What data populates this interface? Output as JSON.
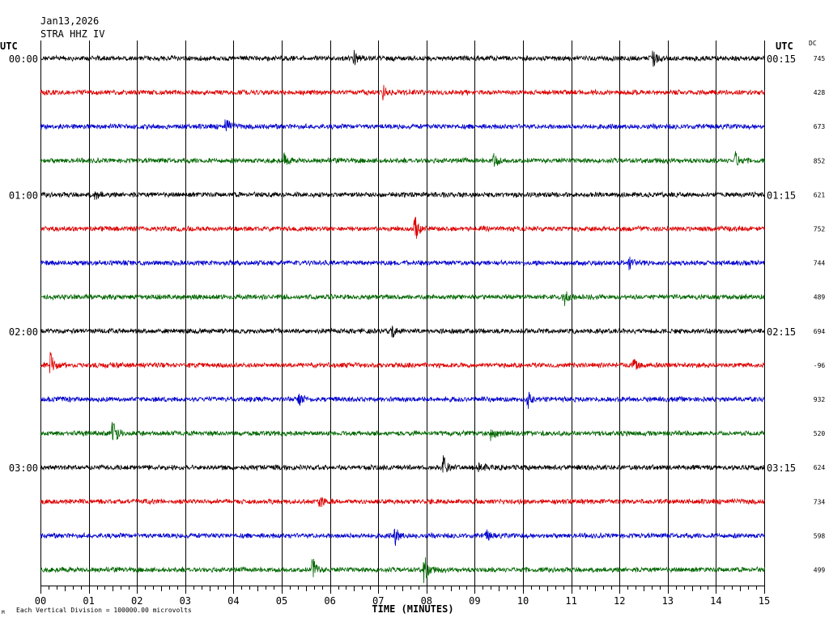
{
  "header": {
    "date": "Jan13,2026",
    "station": "STRA HHZ IV"
  },
  "left_utc_label": "UTC",
  "right_utc_label": "UTC",
  "dc_label": "DC",
  "footer": {
    "mark": "M",
    "note": "Each Vertical Division = 100000.00 microvolts"
  },
  "colors": {
    "black": "#000000",
    "red": "#dd0000",
    "blue": "#0000cc",
    "green": "#006600",
    "grid": "#000000"
  },
  "chart_data": {
    "type": "line",
    "title": "",
    "xlabel": "TIME (MINUTES)",
    "ylabel": "",
    "xlim": [
      0,
      15
    ],
    "x_ticks": [
      "00",
      "01",
      "02",
      "03",
      "04",
      "05",
      "06",
      "07",
      "08",
      "09",
      "10",
      "11",
      "12",
      "13",
      "14",
      "15"
    ],
    "trace_color_cycle": [
      "black",
      "red",
      "blue",
      "green"
    ],
    "rows": [
      {
        "left_time": "00:00",
        "right_time": "00:15",
        "dc": "745",
        "color": "black"
      },
      {
        "left_time": "",
        "right_time": "",
        "dc": "428",
        "color": "red"
      },
      {
        "left_time": "",
        "right_time": "",
        "dc": "673",
        "color": "blue"
      },
      {
        "left_time": "",
        "right_time": "",
        "dc": "852",
        "color": "green"
      },
      {
        "left_time": "01:00",
        "right_time": "01:15",
        "dc": "621",
        "color": "black"
      },
      {
        "left_time": "",
        "right_time": "",
        "dc": "752",
        "color": "red"
      },
      {
        "left_time": "",
        "right_time": "",
        "dc": "744",
        "color": "blue"
      },
      {
        "left_time": "",
        "right_time": "",
        "dc": "489",
        "color": "green"
      },
      {
        "left_time": "02:00",
        "right_time": "02:15",
        "dc": "694",
        "color": "black"
      },
      {
        "left_time": "",
        "right_time": "",
        "dc": "-96",
        "color": "red"
      },
      {
        "left_time": "",
        "right_time": "",
        "dc": "932",
        "color": "blue"
      },
      {
        "left_time": "",
        "right_time": "",
        "dc": "520",
        "color": "green"
      },
      {
        "left_time": "03:00",
        "right_time": "03:15",
        "dc": "624",
        "color": "black"
      },
      {
        "left_time": "",
        "right_time": "",
        "dc": "734",
        "color": "red"
      },
      {
        "left_time": "",
        "right_time": "",
        "dc": "598",
        "color": "blue"
      },
      {
        "left_time": "",
        "right_time": "",
        "dc": "499",
        "color": "green"
      }
    ],
    "events": [
      {
        "row": 0,
        "minute": 6.5,
        "amplitude": 8
      },
      {
        "row": 0,
        "minute": 12.7,
        "amplitude": 9
      },
      {
        "row": 1,
        "minute": 7.1,
        "amplitude": 8
      },
      {
        "row": 2,
        "minute": 3.85,
        "amplitude": 9
      },
      {
        "row": 3,
        "minute": 5.05,
        "amplitude": 7
      },
      {
        "row": 3,
        "minute": 9.4,
        "amplitude": 9
      },
      {
        "row": 3,
        "minute": 14.4,
        "amplitude": 11
      },
      {
        "row": 4,
        "minute": 1.15,
        "amplitude": 5
      },
      {
        "row": 5,
        "minute": 7.75,
        "amplitude": 17
      },
      {
        "row": 6,
        "minute": 12.2,
        "amplitude": 7
      },
      {
        "row": 7,
        "minute": 10.85,
        "amplitude": 10
      },
      {
        "row": 8,
        "minute": 7.3,
        "amplitude": 7
      },
      {
        "row": 9,
        "minute": 0.2,
        "amplitude": 20
      },
      {
        "row": 9,
        "minute": 12.3,
        "amplitude": 8
      },
      {
        "row": 10,
        "minute": 5.35,
        "amplitude": 12
      },
      {
        "row": 10,
        "minute": 10.1,
        "amplitude": 9
      },
      {
        "row": 11,
        "minute": 1.5,
        "amplitude": 18
      },
      {
        "row": 11,
        "minute": 9.35,
        "amplitude": 10
      },
      {
        "row": 12,
        "minute": 8.35,
        "amplitude": 15
      },
      {
        "row": 12,
        "minute": 9.1,
        "amplitude": 7
      },
      {
        "row": 13,
        "minute": 5.8,
        "amplitude": 8
      },
      {
        "row": 14,
        "minute": 7.35,
        "amplitude": 11
      },
      {
        "row": 14,
        "minute": 9.25,
        "amplitude": 6
      },
      {
        "row": 15,
        "minute": 5.65,
        "amplitude": 17
      },
      {
        "row": 15,
        "minute": 7.95,
        "amplitude": 18
      }
    ]
  }
}
